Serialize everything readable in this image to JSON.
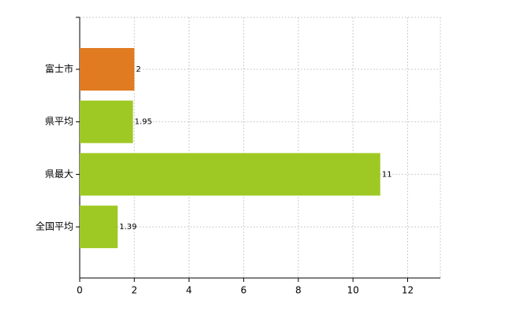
{
  "chart_data": {
    "type": "barh",
    "categories": [
      "富士市",
      "県平均",
      "県最大",
      "全国平均"
    ],
    "values": [
      2,
      1.95,
      11,
      1.39
    ],
    "colors": [
      "#e07b22",
      "#9ec925",
      "#9ec925",
      "#9ec925"
    ],
    "xlim": [
      0,
      13.2
    ],
    "xticks": [
      0,
      2,
      4,
      6,
      8,
      10,
      12
    ],
    "grid": true
  }
}
